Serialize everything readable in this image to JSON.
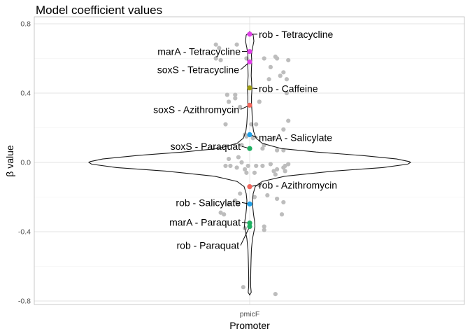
{
  "chart_data": {
    "type": "scatter",
    "title": "Model coefficient values",
    "xlabel": "Promoter",
    "ylabel": "β value",
    "categories": [
      "pmicF"
    ],
    "ylim": [
      -0.82,
      0.83
    ],
    "yticks": [
      -0.8,
      -0.4,
      0.0,
      0.4,
      0.8
    ],
    "ytick_labels": [
      "-0.8",
      "-0.4",
      "0.0",
      "0.4",
      "0.8"
    ],
    "grid": true,
    "violin": true,
    "highlighted": [
      {
        "label": "rob - Tetracycline",
        "y": 0.74,
        "color": "#e040e8"
      },
      {
        "label": "marA - Tetracycline",
        "y": 0.64,
        "color": "#e040e8"
      },
      {
        "label": "soxS - Tetracycline",
        "y": 0.58,
        "color": "#e040e8"
      },
      {
        "label": "rob - Caffeine",
        "y": 0.43,
        "color": "#9c9a12"
      },
      {
        "label": "soxS - Azithromycin",
        "y": 0.33,
        "color": "#f2665c"
      },
      {
        "label": "marA - Salicylate",
        "y": 0.16,
        "color": "#1e9fe8"
      },
      {
        "label": "soxS - Paraquat",
        "y": 0.08,
        "color": "#1fb061"
      },
      {
        "label": "rob - Azithromycin",
        "y": -0.14,
        "color": "#f2665c"
      },
      {
        "label": "rob - Salicylate",
        "y": -0.24,
        "color": "#1e9fe8"
      },
      {
        "label": "marA - Paraquat",
        "y": -0.35,
        "color": "#1fb061"
      },
      {
        "label": "rob - Paraquat",
        "y": -0.37,
        "color": "#1fb061"
      }
    ],
    "background_points": [
      {
        "x": 0.81,
        "y": 0.66
      },
      {
        "x": 0.79,
        "y": 0.6
      },
      {
        "x": 0.82,
        "y": 0.59
      },
      {
        "x": 0.98,
        "y": 0.6
      },
      {
        "x": 0.92,
        "y": 0.68
      },
      {
        "x": 0.79,
        "y": 0.68
      },
      {
        "x": 1.16,
        "y": 0.61
      },
      {
        "x": 1.17,
        "y": 0.6
      },
      {
        "x": 1.24,
        "y": 0.59
      },
      {
        "x": 1.09,
        "y": 0.6
      },
      {
        "x": 1.21,
        "y": 0.52
      },
      {
        "x": 1.13,
        "y": 0.55
      },
      {
        "x": 1.19,
        "y": 0.5
      },
      {
        "x": 1.12,
        "y": 0.48
      },
      {
        "x": 1.23,
        "y": 0.48
      },
      {
        "x": 1.23,
        "y": 0.4
      },
      {
        "x": 0.91,
        "y": 0.39
      },
      {
        "x": 0.86,
        "y": 0.39
      },
      {
        "x": 0.91,
        "y": 0.37
      },
      {
        "x": 0.87,
        "y": 0.35
      },
      {
        "x": 1.06,
        "y": 0.35
      },
      {
        "x": 0.94,
        "y": 0.32
      },
      {
        "x": 0.85,
        "y": 0.22
      },
      {
        "x": 1.01,
        "y": 0.22
      },
      {
        "x": 1.04,
        "y": 0.22
      },
      {
        "x": 1.24,
        "y": 0.24
      },
      {
        "x": 1.21,
        "y": 0.19
      },
      {
        "x": 0.97,
        "y": 0.16
      },
      {
        "x": 0.95,
        "y": 0.1
      },
      {
        "x": 1.02,
        "y": 0.14
      },
      {
        "x": 0.98,
        "y": 0.15
      },
      {
        "x": 1.08,
        "y": 0.08
      },
      {
        "x": 1.09,
        "y": 0.1
      },
      {
        "x": 1.15,
        "y": 0.14
      },
      {
        "x": 1.17,
        "y": 0.07
      },
      {
        "x": 1.21,
        "y": 0.07
      },
      {
        "x": 0.93,
        "y": 0.03
      },
      {
        "x": 0.95,
        "y": 0.0
      },
      {
        "x": 0.87,
        "y": 0.02
      },
      {
        "x": 0.88,
        "y": -0.02
      },
      {
        "x": 0.85,
        "y": -0.02
      },
      {
        "x": 0.92,
        "y": -0.03
      },
      {
        "x": 0.97,
        "y": -0.04
      },
      {
        "x": 0.98,
        "y": -0.06
      },
      {
        "x": 0.99,
        "y": -0.02
      },
      {
        "x": 1.03,
        "y": -0.06
      },
      {
        "x": 1.04,
        "y": -0.02
      },
      {
        "x": 1.08,
        "y": -0.02
      },
      {
        "x": 1.13,
        "y": -0.01
      },
      {
        "x": 1.15,
        "y": -0.05
      },
      {
        "x": 1.16,
        "y": -0.07
      },
      {
        "x": 1.17,
        "y": -0.04
      },
      {
        "x": 1.21,
        "y": -0.03
      },
      {
        "x": 1.22,
        "y": -0.02
      },
      {
        "x": 1.22,
        "y": -0.05
      },
      {
        "x": 1.24,
        "y": -0.01
      },
      {
        "x": 1.06,
        "y": -0.13
      },
      {
        "x": 1.03,
        "y": -0.2
      },
      {
        "x": 0.91,
        "y": -0.22
      },
      {
        "x": 0.94,
        "y": -0.18
      },
      {
        "x": 0.87,
        "y": -0.24
      },
      {
        "x": 0.93,
        "y": -0.24
      },
      {
        "x": 1.11,
        "y": -0.19
      },
      {
        "x": 1.17,
        "y": -0.21
      },
      {
        "x": 1.21,
        "y": -0.23
      },
      {
        "x": 1.2,
        "y": -0.3
      },
      {
        "x": 0.84,
        "y": -0.3
      },
      {
        "x": 0.82,
        "y": -0.29
      },
      {
        "x": 0.97,
        "y": -0.38
      },
      {
        "x": 1.09,
        "y": -0.37
      },
      {
        "x": 1.09,
        "y": -0.39
      },
      {
        "x": 0.96,
        "y": -0.72
      },
      {
        "x": 1.16,
        "y": -0.76
      }
    ]
  }
}
